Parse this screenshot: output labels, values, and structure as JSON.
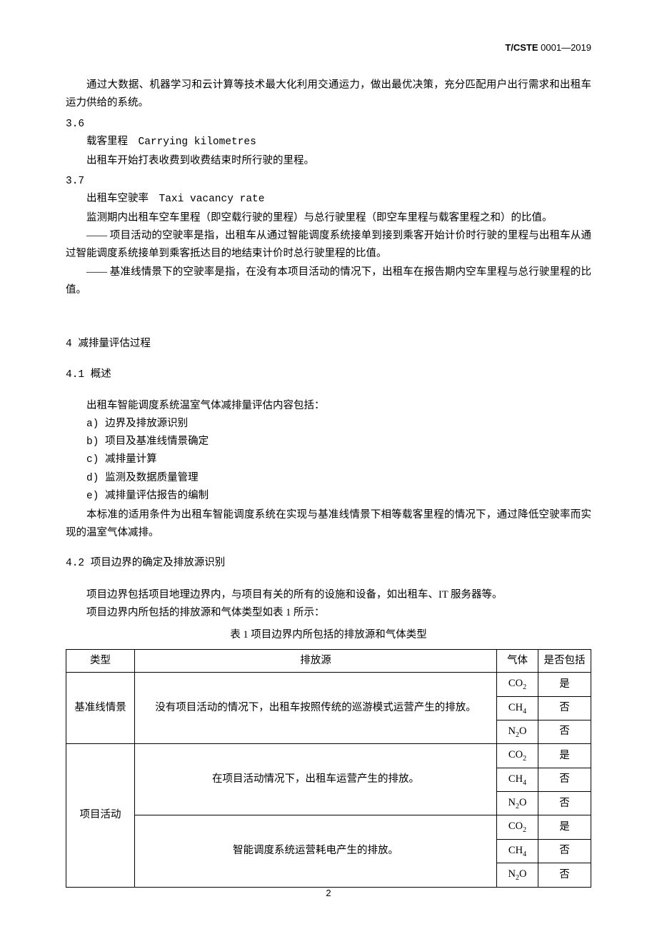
{
  "header": {
    "code_prefix": "T/CSTE",
    "code_suffix": " 0001—2019"
  },
  "intro_para": "通过大数据、机器学习和云计算等技术最大化利用交通运力，做出最优决策，充分匹配用户出行需求和出租车运力供给的系统。",
  "term_36": {
    "num": "3.6",
    "title": "载客里程　Carrying kilometres",
    "def": "出租车开始打表收费到收费结束时所行驶的里程。"
  },
  "term_37": {
    "num": "3.7",
    "title": "出租车空驶率　Taxi vacancy rate",
    "def1": "监测期内出租车空车里程（即空载行驶的里程）与总行驶里程（即空车里程与载客里程之和）的比值。",
    "def2": "—— 项目活动的空驶率是指，出租车从通过智能调度系统接单到接到乘客开始计价时行驶的里程与出租车从通过智能调度系统接单到乘客抵达目的地结束计价时总行驶里程的比值。",
    "def3": "—— 基准线情景下的空驶率是指，在没有本项目活动的情况下，出租车在报告期内空车里程与总行驶里程的比值。"
  },
  "sec4_title": "4 减排量评估过程",
  "sec41": {
    "title": "4.1 概述",
    "lead": "出租车智能调度系统温室气体减排量评估内容包括：",
    "items": [
      "a) 边界及排放源识别",
      "b) 项目及基准线情景确定",
      "c) 减排量计算",
      "d) 监测及数据质量管理",
      "e) 减排量评估报告的编制"
    ],
    "tail": "本标准的适用条件为出租车智能调度系统在实现与基准线情景下相等载客里程的情况下，通过降低空驶率而实现的温室气体减排。"
  },
  "sec42": {
    "title": "4.2 项目边界的确定及排放源识别",
    "p1": "项目边界包括项目地理边界内，与项目有关的所有的设施和设备，如出租车、IT 服务器等。",
    "p2": "项目边界内所包括的排放源和气体类型如表 1 所示：",
    "table_title": "表 1 项目边界内所包括的排放源和气体类型"
  },
  "table": {
    "columns": [
      "类型",
      "排放源",
      "气体",
      "是否包括"
    ],
    "col_widths": {
      "type": 96,
      "source": "auto",
      "gas": 58,
      "included": 74
    },
    "gases": [
      "CO2",
      "CH4",
      "N2O"
    ],
    "included_yes": "是",
    "included_no": "否",
    "rows": [
      {
        "type": "基准线情景",
        "source": "没有项目活动的情况下，出租车按照传统的巡游模式运营产生的排放。",
        "gases": [
          {
            "gas": "CO2",
            "included": "是"
          },
          {
            "gas": "CH4",
            "included": "否"
          },
          {
            "gas": "N2O",
            "included": "否"
          }
        ]
      },
      {
        "type": "项目活动",
        "sources": [
          {
            "source": "在项目活动情况下，出租车运营产生的排放。",
            "gases": [
              {
                "gas": "CO2",
                "included": "是"
              },
              {
                "gas": "CH4",
                "included": "否"
              },
              {
                "gas": "N2O",
                "included": "否"
              }
            ]
          },
          {
            "source": "智能调度系统运营耗电产生的排放。",
            "gases": [
              {
                "gas": "CO2",
                "included": "是"
              },
              {
                "gas": "CH4",
                "included": "否"
              },
              {
                "gas": "N2O",
                "included": "否"
              }
            ]
          }
        ]
      }
    ],
    "border_color": "#000000",
    "font_size": 14.5
  },
  "page_number": "2",
  "colors": {
    "text": "#000000",
    "background": "#ffffff"
  },
  "typography": {
    "body_font": "SimSun",
    "body_size_pt": 11,
    "line_height": 1.75
  }
}
